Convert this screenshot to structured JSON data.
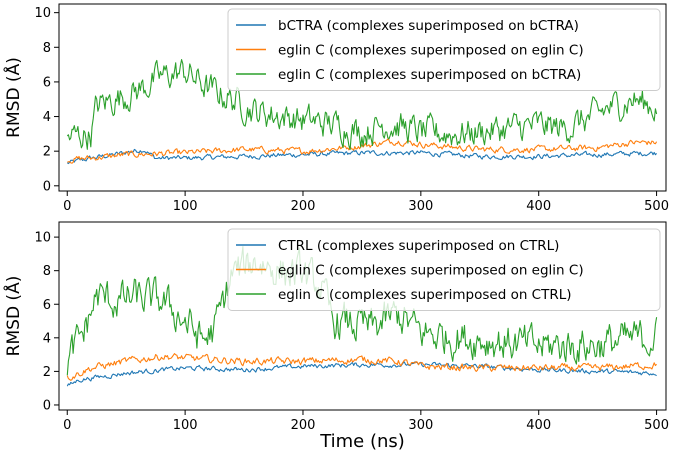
{
  "chart_data": [
    {
      "type": "line",
      "xlabel": "",
      "ylabel": "RMSD (Å)",
      "xlim": [
        -7,
        508
      ],
      "ylim": [
        -0.3,
        10.5
      ],
      "xticks": [
        "0",
        "100",
        "200",
        "300",
        "400",
        "500"
      ],
      "yticks": [
        "0",
        "2",
        "4",
        "6",
        "8",
        "10"
      ],
      "legend_position": "top-right",
      "series": [
        {
          "name": "bCTRA (complexes superimposed on bCTRA)",
          "color": "#1f77b4",
          "x": [
            0,
            20,
            40,
            55,
            65,
            75,
            100,
            150,
            200,
            250,
            300,
            350,
            400,
            450,
            500
          ],
          "values": [
            1.3,
            1.6,
            1.8,
            2.0,
            2.1,
            1.6,
            1.6,
            1.7,
            1.8,
            1.9,
            1.9,
            1.7,
            1.7,
            1.8,
            1.9
          ],
          "noise": 0.12
        },
        {
          "name": "eglin C (complexes superimposed on eglin C)",
          "color": "#ff7f0e",
          "x": [
            0,
            20,
            50,
            100,
            150,
            200,
            250,
            280,
            300,
            350,
            400,
            450,
            480,
            500
          ],
          "values": [
            1.5,
            1.6,
            1.8,
            1.9,
            2.1,
            2.0,
            2.3,
            2.6,
            2.4,
            2.1,
            2.1,
            2.2,
            2.5,
            2.5
          ],
          "noise": 0.15
        },
        {
          "name": "eglin C (complexes superimposed on bCTRA)",
          "color": "#2ca02c",
          "x": [
            0,
            20,
            25,
            40,
            60,
            80,
            100,
            120,
            140,
            160,
            200,
            230,
            250,
            270,
            300,
            330,
            360,
            400,
            420,
            440,
            460,
            480,
            500
          ],
          "values": [
            2.8,
            3.0,
            4.6,
            5.0,
            5.5,
            6.3,
            6.6,
            5.6,
            5.0,
            4.3,
            3.8,
            3.5,
            3.1,
            3.6,
            3.1,
            3.0,
            3.2,
            3.5,
            3.3,
            3.8,
            4.5,
            5.0,
            4.5
          ],
          "noise": 0.7
        }
      ]
    },
    {
      "type": "line",
      "xlabel": "Time (ns)",
      "ylabel": "RMSD (Å)",
      "xlim": [
        -7,
        508
      ],
      "ylim": [
        -0.3,
        10.9
      ],
      "xticks": [
        "0",
        "100",
        "200",
        "300",
        "400",
        "500"
      ],
      "yticks": [
        "0",
        "2",
        "4",
        "6",
        "8",
        "10"
      ],
      "legend_position": "top-right",
      "series": [
        {
          "name": "CTRL (complexes superimposed on CTRL)",
          "color": "#1f77b4",
          "x": [
            0,
            10,
            50,
            100,
            150,
            200,
            250,
            300,
            350,
            400,
            450,
            500
          ],
          "values": [
            1.1,
            1.5,
            1.9,
            2.2,
            2.1,
            2.3,
            2.4,
            2.4,
            2.3,
            2.1,
            2.0,
            1.9
          ],
          "noise": 0.12
        },
        {
          "name": "eglin C (complexes superimposed on eglin C)",
          "color": "#ff7f0e",
          "x": [
            0,
            20,
            50,
            80,
            100,
            150,
            200,
            250,
            280,
            300,
            350,
            400,
            450,
            500
          ],
          "values": [
            1.6,
            2.2,
            2.6,
            2.9,
            2.8,
            2.6,
            2.6,
            2.7,
            2.6,
            2.3,
            2.2,
            2.2,
            2.2,
            2.4
          ],
          "noise": 0.18
        },
        {
          "name": "eglin C (complexes superimposed on CTRL)",
          "color": "#2ca02c",
          "x": [
            0,
            15,
            25,
            40,
            60,
            80,
            100,
            115,
            125,
            140,
            160,
            180,
            200,
            215,
            225,
            260,
            280,
            300,
            320,
            350,
            400,
            450,
            500
          ],
          "values": [
            2.5,
            4.5,
            6.5,
            6.2,
            6.4,
            6.2,
            5.0,
            3.8,
            4.5,
            7.8,
            8.6,
            8.0,
            7.8,
            7.0,
            5.0,
            4.6,
            5.4,
            4.3,
            4.1,
            3.9,
            3.5,
            3.6,
            4.1
          ],
          "noise": 0.9
        }
      ]
    }
  ]
}
